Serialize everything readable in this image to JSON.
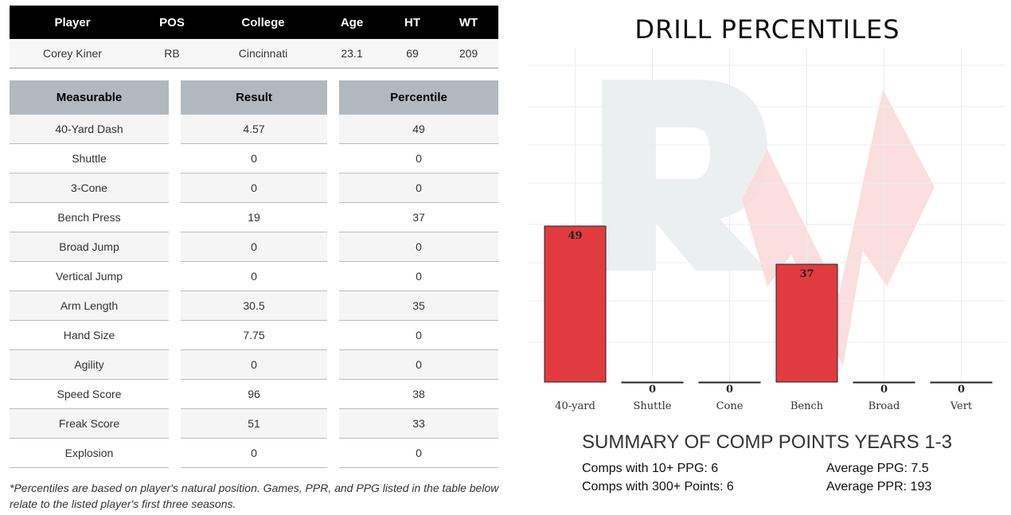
{
  "player_table": {
    "headers": [
      "Player",
      "POS",
      "College",
      "Age",
      "HT",
      "WT"
    ],
    "row": [
      "Corey Kiner",
      "RB",
      "Cincinnati",
      "23.1",
      "69",
      "209"
    ]
  },
  "measurables": {
    "headers": [
      "Measurable",
      "Result",
      "Percentile"
    ],
    "rows": [
      [
        "40-Yard Dash",
        "4.57",
        "49"
      ],
      [
        "Shuttle",
        "0",
        "0"
      ],
      [
        "3-Cone",
        "0",
        "0"
      ],
      [
        "Bench Press",
        "19",
        "37"
      ],
      [
        "Broad Jump",
        "0",
        "0"
      ],
      [
        "Vertical Jump",
        "0",
        "0"
      ],
      [
        "Arm Length",
        "30.5",
        "35"
      ],
      [
        "Hand Size",
        "7.75",
        "0"
      ],
      [
        "Agility",
        "0",
        "0"
      ],
      [
        "Speed Score",
        "96",
        "38"
      ],
      [
        "Freak Score",
        "51",
        "33"
      ],
      [
        "Explosion",
        "0",
        "0"
      ]
    ]
  },
  "footnote": "*Percentiles are based on player's natural position. Games, PPR, and PPG listed in the table below relate to the listed player's first three seasons.",
  "chart_data": {
    "type": "bar",
    "title": "DRILL PERCENTILES",
    "categories": [
      "40-yard",
      "Shuttle",
      "Cone",
      "Bench",
      "Broad",
      "Vert"
    ],
    "values": [
      49,
      0,
      0,
      37,
      0,
      0
    ],
    "ylim": [
      0,
      105
    ],
    "grid": true,
    "bar_color": "#e0353a",
    "xlabel": "",
    "ylabel": ""
  },
  "summary": {
    "title": "SUMMARY OF COMP POINTS YEARS 1-3",
    "comps_10_ppg": "Comps with 10+ PPG: 6",
    "comps_300_points": "Comps with 300+ Points: 6",
    "avg_ppg": "Average PPG: 7.5",
    "avg_ppr": "Average PPR: 193"
  }
}
